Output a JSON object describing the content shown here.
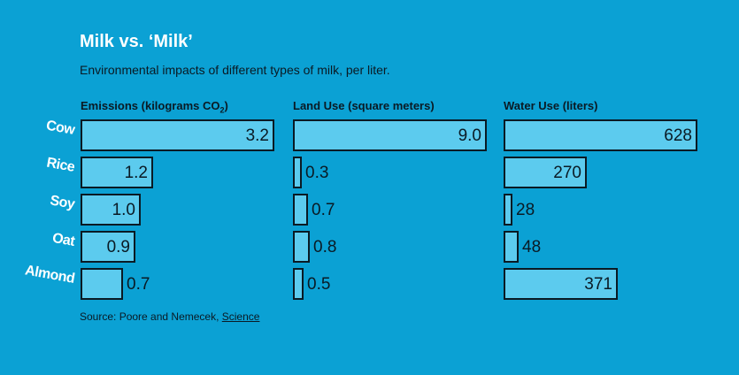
{
  "chart_data": {
    "type": "bar",
    "orientation": "horizontal",
    "title": "Milk vs. ‘Milk’",
    "subtitle": "Environmental impacts of different types of milk, per liter.",
    "categories": [
      "Cow",
      "Rice",
      "Soy",
      "Oat",
      "Almond"
    ],
    "panels": [
      {
        "title_main": "Emissions (kilograms CO",
        "title_sub": "2",
        "title_end": ")",
        "values": [
          3.2,
          1.2,
          1.0,
          0.9,
          0.7
        ],
        "value_labels": [
          "3.2",
          "1.2",
          "1.0",
          "0.9",
          "0.7"
        ],
        "max": 3.2
      },
      {
        "title_main": "Land Use (square meters)",
        "title_sub": "",
        "title_end": "",
        "values": [
          9.0,
          0.3,
          0.7,
          0.8,
          0.5
        ],
        "value_labels": [
          "9.0",
          "0.3",
          "0.7",
          "0.8",
          "0.5"
        ],
        "max": 9.0
      },
      {
        "title_main": "Water Use (liters)",
        "title_sub": "",
        "title_end": "",
        "values": [
          628,
          270,
          28,
          48,
          371
        ],
        "value_labels": [
          "628",
          "270",
          "28",
          "48",
          "371"
        ],
        "max": 628
      }
    ],
    "bar_color": "#5ccbee",
    "background_color": "#0ba1d4",
    "legend": "none",
    "grid": false
  },
  "source": {
    "prefix": "Source: Poore and Nemecek, ",
    "link": "Science"
  }
}
